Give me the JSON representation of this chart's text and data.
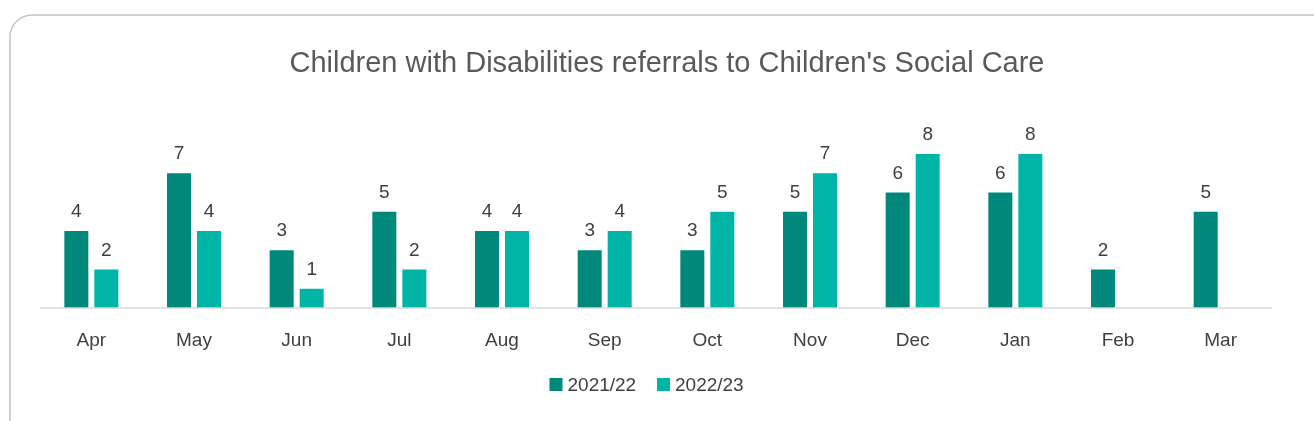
{
  "chart_data": {
    "type": "bar",
    "title": "Children with Disabilities referrals to Children's Social Care",
    "categories": [
      "Apr",
      "May",
      "Jun",
      "Jul",
      "Aug",
      "Sep",
      "Oct",
      "Nov",
      "Dec",
      "Jan",
      "Feb",
      "Mar"
    ],
    "series": [
      {
        "name": "2021/22",
        "color": "#00897b",
        "values": [
          4,
          7,
          3,
          5,
          4,
          3,
          3,
          5,
          6,
          6,
          2,
          5
        ]
      },
      {
        "name": "2022/23",
        "color": "#00b5a6",
        "values": [
          2,
          4,
          1,
          2,
          4,
          4,
          5,
          7,
          8,
          8,
          null,
          null
        ]
      }
    ],
    "data_labels": true,
    "legend": "bottom",
    "grid": false
  }
}
